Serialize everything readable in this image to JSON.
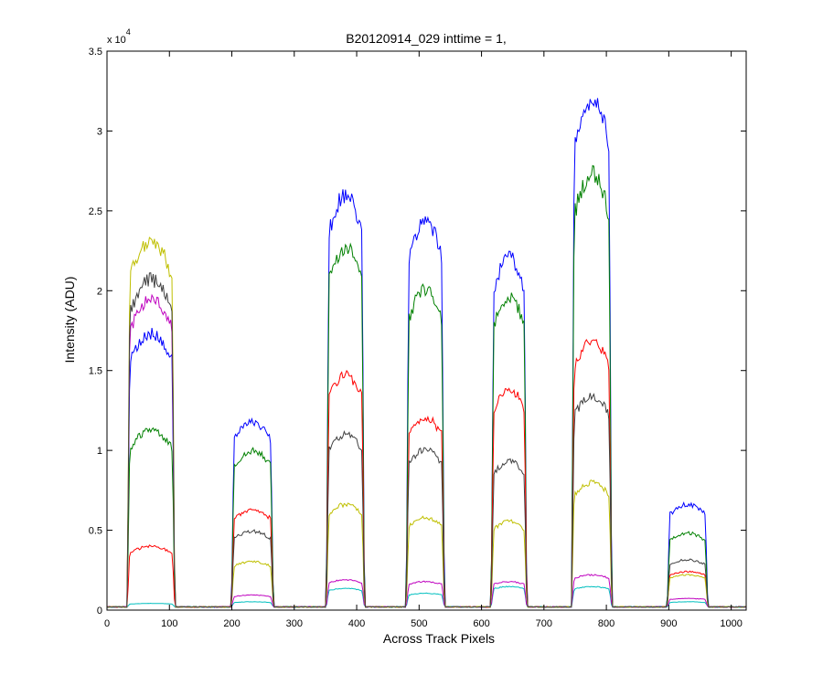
{
  "chart_data": {
    "type": "line",
    "title": "B20120914_029 inttime = 1,",
    "xlabel": "Across Track Pixels",
    "ylabel": "Intensity (ADU)",
    "xlim": [
      0,
      1024
    ],
    "ylim": [
      0,
      35000
    ],
    "y_multiplier_label": "x 10",
    "y_multiplier_exponent": "4",
    "x_ticks": [
      0,
      100,
      200,
      300,
      400,
      500,
      600,
      700,
      800,
      900,
      1000
    ],
    "x_tick_labels": [
      "0",
      "100",
      "200",
      "300",
      "400",
      "500",
      "600",
      "700",
      "800",
      "900",
      "1000"
    ],
    "y_ticks": [
      0,
      5000,
      10000,
      15000,
      20000,
      25000,
      30000,
      35000
    ],
    "y_tick_labels": [
      "0",
      "0.5",
      "1",
      "1.5",
      "2",
      "2.5",
      "3",
      "3.5"
    ],
    "grid": false,
    "baseline": 200,
    "segments": [
      {
        "start": 33,
        "end": 108
      },
      {
        "start": 200,
        "end": 266
      },
      {
        "start": 352,
        "end": 412
      },
      {
        "start": 480,
        "end": 540
      },
      {
        "start": 616,
        "end": 672
      },
      {
        "start": 745,
        "end": 808
      },
      {
        "start": 898,
        "end": 962
      }
    ],
    "series": [
      {
        "color": "#0000ff",
        "levels": [
          16500,
          11200,
          24800,
          23200,
          21000,
          30500,
          6300
        ]
      },
      {
        "color": "#008000",
        "levels": [
          10700,
          9500,
          21600,
          19100,
          18700,
          26000,
          4600
        ]
      },
      {
        "color": "#ff0000",
        "levels": [
          3800,
          6000,
          14000,
          11500,
          13200,
          16000,
          2300
        ]
      },
      {
        "color": "#00bfbf",
        "levels": [
          400,
          500,
          1300,
          1000,
          1400,
          1400,
          500
        ]
      },
      {
        "color": "#bf00bf",
        "levels": [
          18500,
          900,
          1800,
          1700,
          1700,
          2100,
          700
        ]
      },
      {
        "color": "#bfbf00",
        "levels": [
          22000,
          2900,
          6300,
          5500,
          5300,
          7600,
          2100
        ]
      },
      {
        "color": "#404040",
        "levels": [
          19700,
          4700,
          10500,
          9600,
          8900,
          12800,
          3000
        ]
      }
    ]
  }
}
